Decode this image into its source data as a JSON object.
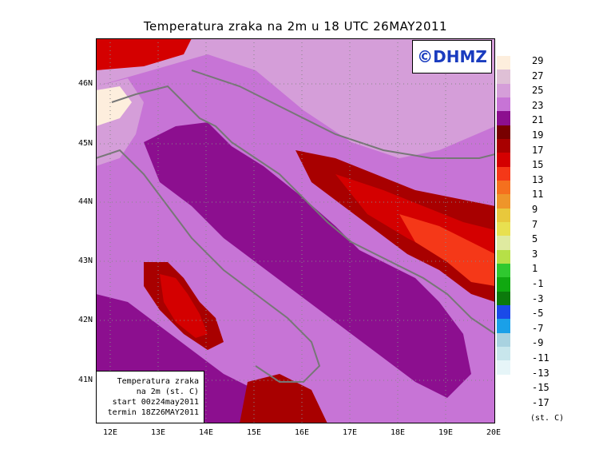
{
  "title": "Temperatura zraka na 2m u 18 UTC 26MAY2011",
  "credit": "©DHMZ",
  "info_box": {
    "line1": "Temperatura zraka",
    "line2": "na 2m (st. C)",
    "line3": "start 00z24may2011",
    "line4": "termin 18Z26MAY2011"
  },
  "lat_labels": [
    "46N",
    "45N",
    "44N",
    "43N",
    "42N",
    "41N"
  ],
  "lon_labels": [
    "12E",
    "13E",
    "14E",
    "15E",
    "16E",
    "17E",
    "18E",
    "19E",
    "20E"
  ],
  "legend": {
    "units": "(st. C)",
    "labels": [
      "29",
      "27",
      "25",
      "23",
      "21",
      "19",
      "17",
      "15",
      "13",
      "11",
      "9",
      "7",
      "5",
      "3",
      "1",
      "-1",
      "-3",
      "-5",
      "-7",
      "-9",
      "-11",
      "-13",
      "-15",
      "-17"
    ],
    "colors": [
      "#fdeedd",
      "#dfc0d6",
      "#d59ed9",
      "#c774d6",
      "#8c0f8f",
      "#780000",
      "#a80000",
      "#d40000",
      "#f53818",
      "#f5701e",
      "#ee952a",
      "#e8c83c",
      "#e8e050",
      "#dfeaa0",
      "#b6e047",
      "#2fc82f",
      "#10a810",
      "#0c7a0c",
      "#1a4ae8",
      "#1aa0e8",
      "#a8d2e0",
      "#c8e6ec",
      "#e6f5f8"
    ]
  },
  "map": {
    "region": "Adriatic Sea and surroundings",
    "extent": {
      "lon": [
        11.7,
        20.0
      ],
      "lat": [
        40.3,
        46.7
      ]
    }
  }
}
